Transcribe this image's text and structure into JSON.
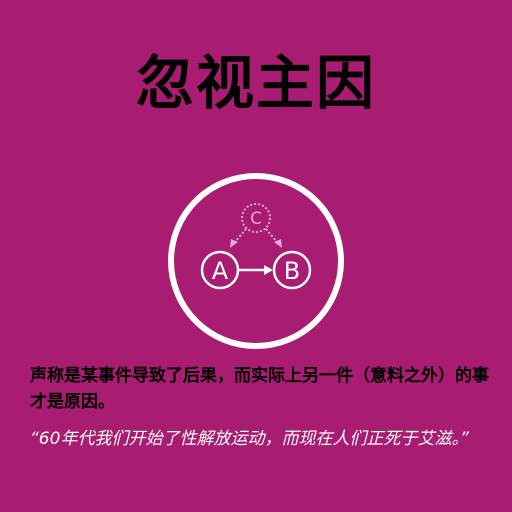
{
  "title": "忽视主因",
  "diagram": {
    "node_a": "A",
    "node_b": "B",
    "node_c": "C"
  },
  "description": "声称是某事件导致了后果，而实际上另一件（意料之外）的事才是原因。",
  "example": "“60年代我们开始了性解放运动，而现在人们正死于艾滋。”",
  "colors": {
    "background": "#A81C72",
    "diagram": "#FFFFFF",
    "hidden_cause": "#E8A6D2"
  }
}
